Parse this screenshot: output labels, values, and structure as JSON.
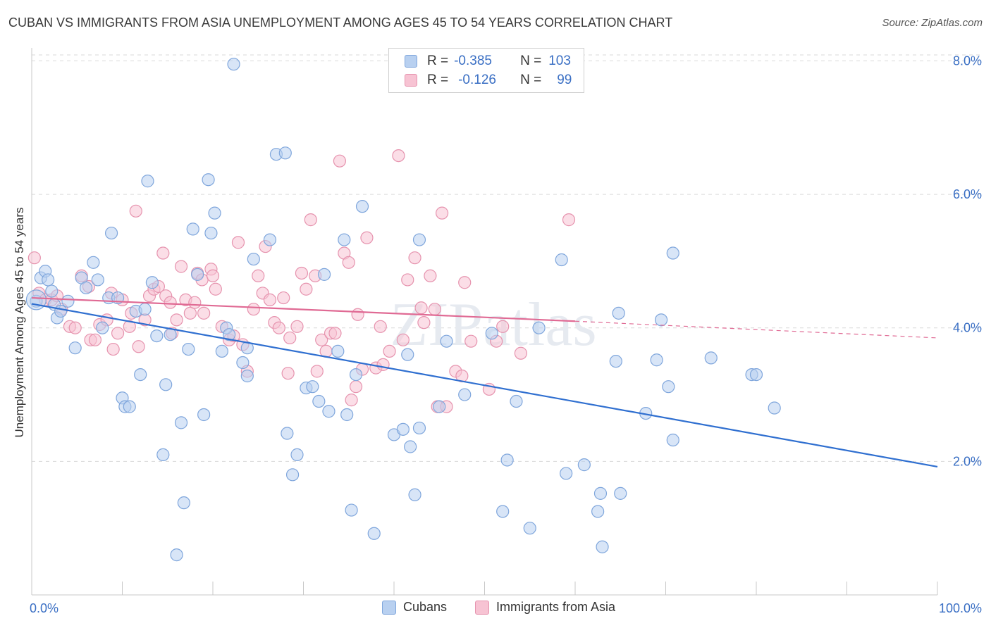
{
  "title": "CUBAN VS IMMIGRANTS FROM ASIA UNEMPLOYMENT AMONG AGES 45 TO 54 YEARS CORRELATION CHART",
  "source": "Source: ZipAtlas.com",
  "legend": {
    "r_label": "R =",
    "n_label": "N =",
    "series1": {
      "r": "-0.385",
      "n": "103"
    },
    "series2": {
      "r": "-0.126",
      "n": "99"
    }
  },
  "colors": {
    "blue_fill": "#b8d0f0",
    "blue_stroke": "#7fa6dc",
    "blue_line": "#2f6fd0",
    "pink_fill": "#f7c3d3",
    "pink_stroke": "#e693ae",
    "pink_line": "#e06a94",
    "tick_label": "#3a6fc4",
    "grid": "#d9d9d9"
  },
  "chart_data": {
    "type": "scatter",
    "xlabel": "",
    "ylabel": "Unemployment Among Ages 45 to 54 years",
    "xlim": [
      0,
      100
    ],
    "ylim": [
      0,
      8.3
    ],
    "x_tick_labels": {
      "min": "0.0%",
      "max": "100.0%"
    },
    "y_ticks": [
      2.0,
      4.0,
      6.0,
      8.0
    ],
    "y_tick_labels": [
      "2.0%",
      "4.0%",
      "6.0%",
      "8.0%"
    ],
    "grid": "horizontal dashed",
    "watermark": "ZIPatlas",
    "series": [
      {
        "name": "Cubans",
        "r": -0.385,
        "n": 103,
        "trend": {
          "x0": 0,
          "y0": 4.36,
          "x1": 100,
          "y1": 1.92
        },
        "points": [
          [
            0.5,
            4.4
          ],
          [
            1.0,
            4.75
          ],
          [
            1.5,
            4.85
          ],
          [
            1.8,
            4.72
          ],
          [
            2.2,
            4.55
          ],
          [
            2.5,
            4.35
          ],
          [
            2.8,
            4.15
          ],
          [
            3.2,
            4.25
          ],
          [
            4.0,
            4.4
          ],
          [
            4.8,
            3.7
          ],
          [
            5.5,
            4.75
          ],
          [
            6.0,
            4.6
          ],
          [
            6.8,
            4.98
          ],
          [
            7.3,
            4.72
          ],
          [
            7.8,
            4.0
          ],
          [
            8.5,
            4.45
          ],
          [
            8.8,
            5.42
          ],
          [
            9.5,
            4.45
          ],
          [
            10.0,
            2.95
          ],
          [
            10.3,
            2.82
          ],
          [
            10.8,
            2.82
          ],
          [
            11.5,
            4.25
          ],
          [
            12.0,
            3.3
          ],
          [
            12.5,
            4.28
          ],
          [
            12.8,
            6.2
          ],
          [
            13.3,
            4.68
          ],
          [
            13.8,
            3.88
          ],
          [
            14.5,
            2.1
          ],
          [
            14.8,
            3.15
          ],
          [
            15.3,
            3.9
          ],
          [
            16.0,
            0.6
          ],
          [
            16.5,
            2.58
          ],
          [
            16.8,
            1.38
          ],
          [
            17.3,
            3.68
          ],
          [
            17.8,
            5.48
          ],
          [
            18.3,
            4.8
          ],
          [
            19.0,
            2.7
          ],
          [
            19.5,
            6.22
          ],
          [
            19.8,
            5.42
          ],
          [
            20.2,
            5.72
          ],
          [
            21.0,
            3.65
          ],
          [
            21.5,
            4.0
          ],
          [
            21.8,
            3.9
          ],
          [
            22.3,
            7.95
          ],
          [
            23.3,
            3.48
          ],
          [
            23.8,
            3.28
          ],
          [
            23.8,
            3.7
          ],
          [
            24.5,
            5.03
          ],
          [
            26.3,
            5.32
          ],
          [
            27.0,
            6.6
          ],
          [
            28.0,
            6.62
          ],
          [
            28.2,
            2.42
          ],
          [
            28.8,
            1.8
          ],
          [
            29.3,
            2.1
          ],
          [
            30.3,
            3.1
          ],
          [
            31.0,
            3.12
          ],
          [
            31.7,
            2.9
          ],
          [
            32.3,
            4.8
          ],
          [
            32.8,
            2.75
          ],
          [
            33.8,
            3.65
          ],
          [
            34.5,
            5.32
          ],
          [
            34.8,
            2.7
          ],
          [
            35.3,
            1.27
          ],
          [
            35.8,
            3.3
          ],
          [
            36.5,
            5.82
          ],
          [
            37.8,
            0.92
          ],
          [
            40.0,
            2.4
          ],
          [
            41.0,
            2.48
          ],
          [
            41.5,
            3.6
          ],
          [
            41.8,
            2.22
          ],
          [
            42.3,
            1.5
          ],
          [
            42.8,
            2.5
          ],
          [
            42.8,
            5.32
          ],
          [
            45.0,
            2.82
          ],
          [
            45.8,
            3.8
          ],
          [
            47.8,
            3.0
          ],
          [
            50.8,
            3.92
          ],
          [
            52.0,
            1.25
          ],
          [
            52.5,
            2.02
          ],
          [
            53.5,
            2.9
          ],
          [
            55.0,
            1.0
          ],
          [
            56.0,
            4.0
          ],
          [
            58.5,
            5.02
          ],
          [
            59.0,
            1.82
          ],
          [
            61.0,
            1.95
          ],
          [
            62.5,
            1.25
          ],
          [
            62.8,
            1.52
          ],
          [
            63.0,
            0.72
          ],
          [
            64.5,
            3.5
          ],
          [
            64.8,
            4.22
          ],
          [
            65.0,
            1.52
          ],
          [
            67.8,
            2.72
          ],
          [
            69.0,
            3.52
          ],
          [
            69.5,
            4.12
          ],
          [
            70.3,
            3.12
          ],
          [
            70.8,
            2.32
          ],
          [
            70.8,
            5.12
          ],
          [
            75.0,
            3.55
          ],
          [
            79.5,
            3.3
          ],
          [
            80.0,
            3.3
          ],
          [
            82.0,
            2.8
          ]
        ]
      },
      {
        "name": "Immigrants from Asia",
        "r": -0.126,
        "n": 99,
        "trend": {
          "x0": 0,
          "y0": 4.45,
          "x1": 60,
          "y1": 4.1,
          "x2": 100,
          "y2": 3.85
        },
        "points": [
          [
            0.3,
            5.05
          ],
          [
            0.8,
            4.52
          ],
          [
            1.5,
            4.42
          ],
          [
            2.2,
            4.42
          ],
          [
            2.8,
            4.48
          ],
          [
            3.3,
            4.28
          ],
          [
            4.2,
            4.02
          ],
          [
            4.8,
            4.0
          ],
          [
            5.5,
            4.78
          ],
          [
            6.3,
            4.62
          ],
          [
            6.5,
            3.82
          ],
          [
            7.0,
            3.82
          ],
          [
            7.5,
            4.05
          ],
          [
            8.3,
            4.12
          ],
          [
            8.8,
            4.52
          ],
          [
            9.0,
            3.68
          ],
          [
            9.5,
            3.92
          ],
          [
            10.0,
            4.42
          ],
          [
            10.8,
            4.02
          ],
          [
            11.0,
            4.22
          ],
          [
            11.5,
            5.75
          ],
          [
            11.8,
            3.72
          ],
          [
            12.5,
            4.12
          ],
          [
            13.0,
            4.48
          ],
          [
            13.5,
            4.58
          ],
          [
            14.0,
            4.62
          ],
          [
            14.5,
            5.12
          ],
          [
            14.8,
            4.48
          ],
          [
            15.3,
            4.38
          ],
          [
            15.5,
            3.92
          ],
          [
            16.0,
            4.12
          ],
          [
            16.5,
            4.92
          ],
          [
            17.0,
            4.42
          ],
          [
            17.5,
            4.22
          ],
          [
            18.0,
            4.38
          ],
          [
            18.3,
            4.82
          ],
          [
            18.8,
            4.72
          ],
          [
            19.0,
            4.22
          ],
          [
            19.8,
            4.88
          ],
          [
            20.0,
            4.78
          ],
          [
            20.3,
            4.58
          ],
          [
            21.0,
            4.02
          ],
          [
            21.8,
            3.82
          ],
          [
            22.3,
            3.88
          ],
          [
            22.8,
            5.28
          ],
          [
            23.3,
            3.75
          ],
          [
            23.8,
            3.35
          ],
          [
            24.5,
            4.28
          ],
          [
            25.0,
            4.78
          ],
          [
            25.5,
            4.52
          ],
          [
            25.8,
            5.22
          ],
          [
            26.3,
            4.42
          ],
          [
            26.8,
            4.08
          ],
          [
            27.3,
            4.0
          ],
          [
            27.8,
            4.45
          ],
          [
            28.3,
            3.32
          ],
          [
            28.5,
            3.85
          ],
          [
            29.3,
            4.02
          ],
          [
            29.8,
            4.82
          ],
          [
            30.3,
            4.58
          ],
          [
            30.8,
            5.62
          ],
          [
            31.3,
            4.78
          ],
          [
            31.5,
            3.35
          ],
          [
            32.0,
            3.82
          ],
          [
            32.5,
            3.65
          ],
          [
            33.0,
            3.92
          ],
          [
            33.5,
            3.92
          ],
          [
            34.0,
            6.5
          ],
          [
            34.5,
            5.12
          ],
          [
            35.0,
            4.98
          ],
          [
            35.3,
            2.92
          ],
          [
            35.8,
            3.12
          ],
          [
            36.0,
            4.2
          ],
          [
            36.5,
            3.38
          ],
          [
            37.0,
            5.35
          ],
          [
            38.0,
            3.4
          ],
          [
            38.5,
            4.02
          ],
          [
            38.8,
            3.45
          ],
          [
            39.5,
            3.65
          ],
          [
            40.5,
            6.58
          ],
          [
            41.0,
            3.82
          ],
          [
            41.5,
            4.72
          ],
          [
            42.3,
            5.05
          ],
          [
            43.0,
            4.3
          ],
          [
            43.3,
            4.08
          ],
          [
            44.0,
            4.78
          ],
          [
            44.5,
            4.28
          ],
          [
            44.8,
            2.82
          ],
          [
            45.3,
            5.72
          ],
          [
            45.8,
            2.82
          ],
          [
            46.8,
            3.35
          ],
          [
            47.5,
            3.28
          ],
          [
            47.8,
            4.68
          ],
          [
            48.5,
            3.8
          ],
          [
            50.5,
            3.08
          ],
          [
            51.3,
            3.8
          ],
          [
            52.0,
            4.02
          ],
          [
            54.0,
            3.62
          ],
          [
            59.3,
            5.62
          ]
        ]
      }
    ]
  }
}
